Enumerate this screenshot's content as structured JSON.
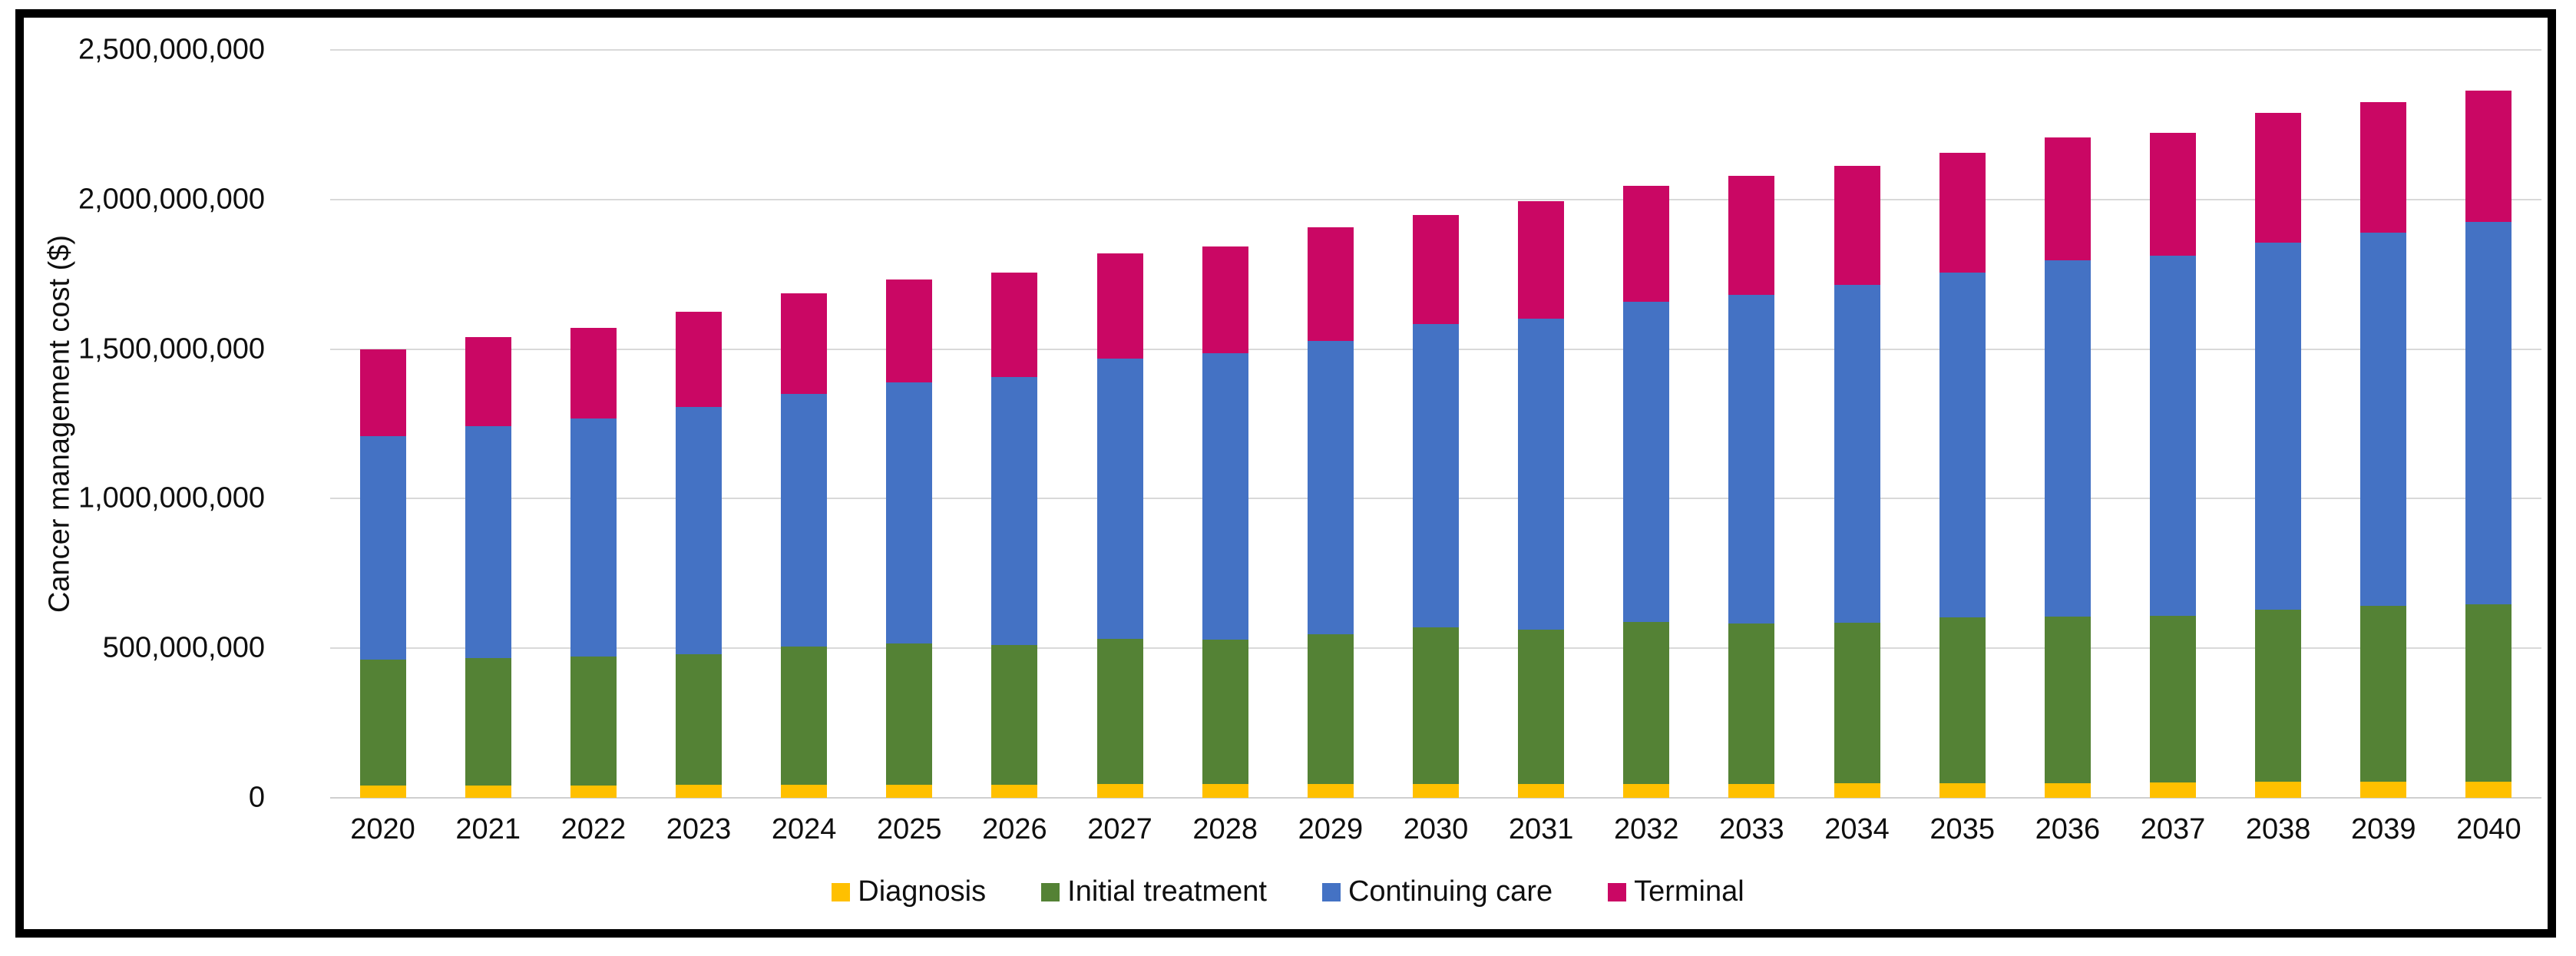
{
  "figure": {
    "background": "#ffffff",
    "border_color": "#000000",
    "gridline_color": "#d9d9d9",
    "text_color": "#0f0f0f"
  },
  "chart_data": {
    "type": "bar",
    "stacked": true,
    "title": "",
    "xlabel": "",
    "ylabel": "Cancer management cost ($)",
    "ylim": [
      0,
      2500000000
    ],
    "ytick_step": 500000000,
    "grid": true,
    "legend_position": "bottom",
    "yticks": [
      {
        "value": 0,
        "label": "0"
      },
      {
        "value": 500000000,
        "label": "500,000,000"
      },
      {
        "value": 1000000000,
        "label": "1,000,000,000"
      },
      {
        "value": 1500000000,
        "label": "1,500,000,000"
      },
      {
        "value": 2000000000,
        "label": "2,000,000,000"
      },
      {
        "value": 2500000000,
        "label": "2,500,000,000"
      }
    ],
    "categories": [
      "2020",
      "2021",
      "2022",
      "2023",
      "2024",
      "2025",
      "2026",
      "2027",
      "2028",
      "2029",
      "2030",
      "2031",
      "2032",
      "2033",
      "2034",
      "2035",
      "2036",
      "2037",
      "2038",
      "2039",
      "2040"
    ],
    "series": [
      {
        "name": "Diagnosis",
        "color": "#FFC000",
        "values": [
          41000000,
          41000000,
          42000000,
          43000000,
          43000000,
          44000000,
          44000000,
          45000000,
          45000000,
          45000000,
          46000000,
          46000000,
          47000000,
          47000000,
          48000000,
          49000000,
          50000000,
          51000000,
          53000000,
          54000000,
          55000000
        ]
      },
      {
        "name": "Initial treatment",
        "color": "#548235",
        "values": [
          420000000,
          425000000,
          430000000,
          437000000,
          462000000,
          472000000,
          468000000,
          487000000,
          483000000,
          503000000,
          524000000,
          516000000,
          541000000,
          536000000,
          537000000,
          554000000,
          556000000,
          557000000,
          576000000,
          588000000,
          592000000
        ]
      },
      {
        "name": "Continuing care",
        "color": "#4472C4",
        "values": [
          748000000,
          776000000,
          797000000,
          827000000,
          846000000,
          872000000,
          894000000,
          937000000,
          957000000,
          980000000,
          1013000000,
          1041000000,
          1069000000,
          1098000000,
          1129000000,
          1152000000,
          1190000000,
          1204000000,
          1226000000,
          1246000000,
          1278000000
        ]
      },
      {
        "name": "Terminal",
        "color": "#CA0764",
        "values": [
          289000000,
          297000000,
          301000000,
          319000000,
          336000000,
          345000000,
          349000000,
          352000000,
          357000000,
          379000000,
          364000000,
          392000000,
          388000000,
          399000000,
          399000000,
          400000000,
          412000000,
          412000000,
          435000000,
          438000000,
          440000000
        ]
      }
    ]
  }
}
